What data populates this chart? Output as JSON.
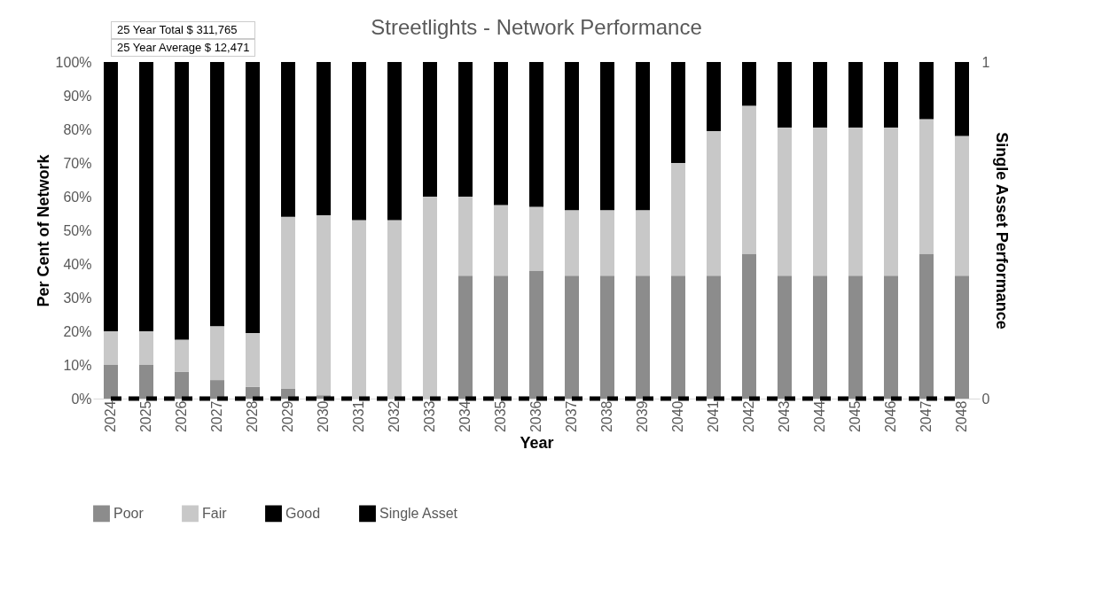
{
  "chart_data": {
    "type": "bar",
    "title": "Streetlights - Network Performance",
    "annotations": [
      "25 Year Total $ 311,765",
      "25 Year Average $ 12,471"
    ],
    "xlabel": "Year",
    "ylabel": "Per Cent of Network",
    "y2label": "Single Asset Performance",
    "categories": [
      "2024",
      "2025",
      "2026",
      "2027",
      "2028",
      "2029",
      "2030",
      "2031",
      "2032",
      "2033",
      "2034",
      "2035",
      "2036",
      "2037",
      "2038",
      "2039",
      "2040",
      "2041",
      "2042",
      "2043",
      "2044",
      "2045",
      "2046",
      "2047",
      "2048"
    ],
    "stacked": true,
    "series": [
      {
        "name": "Poor",
        "color": "#8c8c8c",
        "values": [
          10,
          10,
          8,
          5.5,
          3.5,
          3,
          1,
          0,
          0,
          0,
          36.5,
          36.5,
          38,
          36.5,
          36.5,
          36.5,
          36.5,
          36.5,
          43,
          36.5,
          36.5,
          36.5,
          36.5,
          43,
          36.5
        ]
      },
      {
        "name": "Fair",
        "color": "#c8c8c8",
        "values": [
          10,
          10,
          9.5,
          16,
          16,
          51,
          53.5,
          53,
          53,
          60,
          23.5,
          21,
          19,
          19.5,
          19.5,
          19.5,
          33.5,
          43,
          44,
          44,
          44,
          44,
          44,
          40,
          41.5
        ]
      },
      {
        "name": "Good",
        "color": "#000000",
        "values": [
          80,
          80,
          82.5,
          78.5,
          80.5,
          46,
          45.5,
          47,
          47,
          40,
          40,
          42.5,
          43,
          44,
          44,
          44,
          30,
          20.5,
          13,
          19.5,
          19.5,
          19.5,
          19.5,
          17,
          22
        ]
      },
      {
        "name": "Single Asset",
        "type": "line",
        "axis": "y2",
        "color": "#000000",
        "line_style": "dashed",
        "values": [
          0,
          0,
          0,
          0,
          0,
          0,
          0,
          0,
          0,
          0,
          0,
          0,
          0,
          0,
          0,
          0,
          0,
          0,
          0,
          0,
          0,
          0,
          0,
          0,
          0
        ]
      }
    ],
    "ylim": [
      0,
      100
    ],
    "yticks": [
      {
        "value": 0,
        "label": "0%"
      },
      {
        "value": 10,
        "label": "10%"
      },
      {
        "value": 20,
        "label": "20%"
      },
      {
        "value": 30,
        "label": "30%"
      },
      {
        "value": 40,
        "label": "40%"
      },
      {
        "value": 50,
        "label": "50%"
      },
      {
        "value": 60,
        "label": "60%"
      },
      {
        "value": 70,
        "label": "70%"
      },
      {
        "value": 80,
        "label": "80%"
      },
      {
        "value": 90,
        "label": "90%"
      },
      {
        "value": 100,
        "label": "100%"
      }
    ],
    "y2lim": [
      0,
      1
    ],
    "y2ticks": [
      0,
      1
    ],
    "grid": false,
    "legend": "bottom"
  }
}
